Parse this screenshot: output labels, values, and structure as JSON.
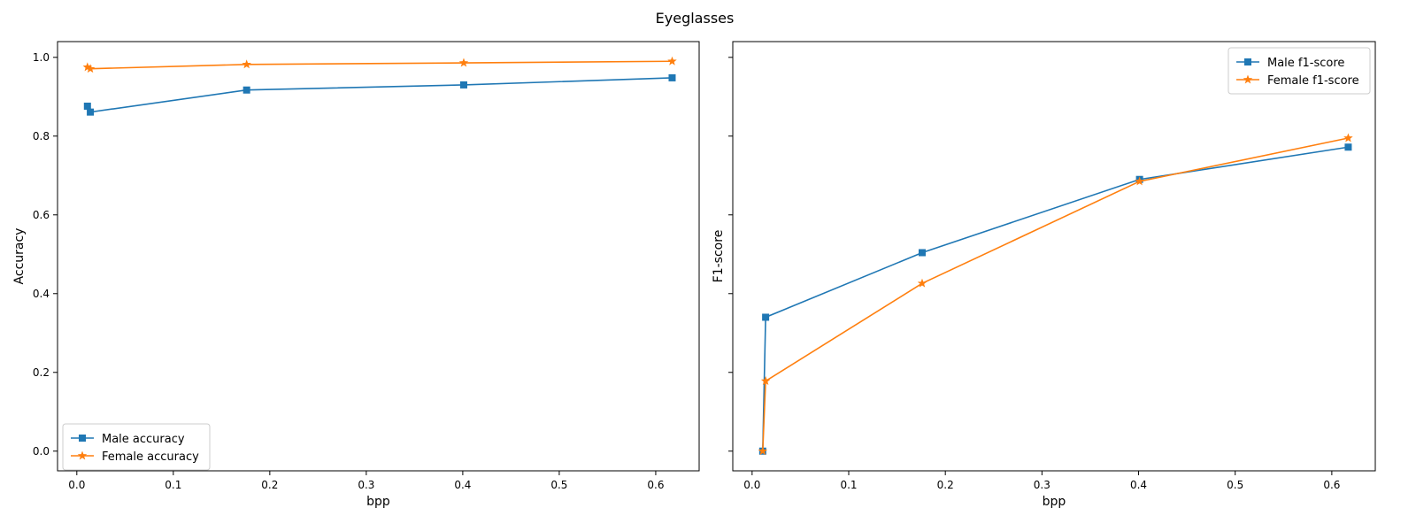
{
  "figure": {
    "title": "Eyeglasses"
  },
  "colors": {
    "male": "#1f77b4",
    "female": "#ff7f0e"
  },
  "chart_data": [
    {
      "type": "line",
      "title": "",
      "xlabel": "bpp",
      "ylabel": "Accuracy",
      "xlim": [
        -0.02,
        0.645
      ],
      "ylim": [
        -0.05,
        1.04
      ],
      "xticks": [
        0.0,
        0.1,
        0.2,
        0.3,
        0.4,
        0.5,
        0.6
      ],
      "xtick_labels": [
        "0.0",
        "0.1",
        "0.2",
        "0.3",
        "0.4",
        "0.5",
        "0.6"
      ],
      "yticks": [
        0.0,
        0.2,
        0.4,
        0.6,
        0.8,
        1.0
      ],
      "ytick_labels": [
        "0.0",
        "0.2",
        "0.4",
        "0.6",
        "0.8",
        "1.0"
      ],
      "grid": false,
      "legend": "lower-left",
      "series": [
        {
          "name": "Male accuracy",
          "marker": "square",
          "color": "#1f77b4",
          "x": [
            0.011,
            0.014,
            0.176,
            0.401,
            0.617
          ],
          "y": [
            0.876,
            0.861,
            0.917,
            0.93,
            0.948
          ]
        },
        {
          "name": "Female accuracy",
          "marker": "star",
          "color": "#ff7f0e",
          "x": [
            0.011,
            0.014,
            0.176,
            0.401,
            0.617
          ],
          "y": [
            0.975,
            0.971,
            0.982,
            0.986,
            0.99
          ]
        }
      ]
    },
    {
      "type": "line",
      "title": "",
      "xlabel": "bpp",
      "ylabel": "F1-score",
      "xlim": [
        -0.02,
        0.645
      ],
      "ylim": [
        -0.05,
        1.04
      ],
      "xticks": [
        0.0,
        0.1,
        0.2,
        0.3,
        0.4,
        0.5,
        0.6
      ],
      "xtick_labels": [
        "0.0",
        "0.1",
        "0.2",
        "0.3",
        "0.4",
        "0.5",
        "0.6"
      ],
      "yticks": [
        0.0,
        0.2,
        0.4,
        0.6,
        0.8,
        1.0
      ],
      "ytick_labels": [],
      "grid": false,
      "legend": "upper-right",
      "series": [
        {
          "name": "Male f1-score",
          "marker": "square",
          "color": "#1f77b4",
          "x": [
            0.011,
            0.014,
            0.176,
            0.401,
            0.617
          ],
          "y": [
            0.0,
            0.34,
            0.504,
            0.69,
            0.772
          ]
        },
        {
          "name": "Female f1-score",
          "marker": "star",
          "color": "#ff7f0e",
          "x": [
            0.011,
            0.014,
            0.176,
            0.401,
            0.617
          ],
          "y": [
            0.0,
            0.178,
            0.426,
            0.685,
            0.795
          ]
        }
      ]
    }
  ]
}
